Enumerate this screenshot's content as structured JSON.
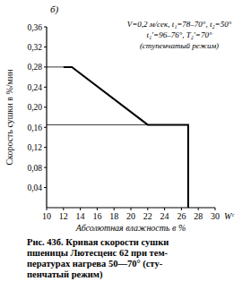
{
  "chart_data": {
    "type": "line",
    "panel_label": "б)",
    "y_label": "Скорость сушки в %/мин",
    "x_label": "Абсолютная влажность в %",
    "x_unit": "Wᶜ",
    "annotation": [
      "V=0,2 м/сек, t₁=78–70°, t₂=50°",
      "t₁′=96–76°, T₂′=70°",
      "(ступенчатый режим)"
    ],
    "caption": [
      "Рис. 43б. Кривая скорости сушки",
      "пшеницы Лютесценс 62 при тем-",
      "пературах нагрева 50—70° (сту-",
      "пенчатый режим)"
    ],
    "series": [
      {
        "x": [
          26.8,
          26.8,
          22,
          13,
          12
        ],
        "values": [
          0,
          0.165,
          0.165,
          0.28,
          0.28
        ],
        "color": "#000000",
        "line_style": "solid"
      },
      {
        "x": [
          10,
          22
        ],
        "values": [
          0.165,
          0.165
        ],
        "color": "#000000",
        "line_style": "thin"
      },
      {
        "x": [
          10,
          12
        ],
        "values": [
          0.28,
          0.28
        ],
        "color": "#000000",
        "line_style": "thin"
      }
    ],
    "xlim": [
      10,
      30
    ],
    "ylim": [
      0,
      0.36
    ],
    "xticks": [
      10,
      12,
      14,
      16,
      18,
      20,
      22,
      24,
      26,
      28,
      30
    ],
    "yticks": [
      {
        "value": 0.04,
        "label": "0,04"
      },
      {
        "value": 0.08,
        "label": "0,08"
      },
      {
        "value": 0.12,
        "label": "0,12"
      },
      {
        "value": 0.16,
        "label": "0,16"
      },
      {
        "value": 0.2,
        "label": "0,20"
      },
      {
        "value": 0.24,
        "label": "0,24"
      },
      {
        "value": 0.28,
        "label": "0,28"
      },
      {
        "value": 0.32,
        "label": "0,32"
      },
      {
        "value": 0.36,
        "label": "0,36"
      }
    ],
    "grid": false
  }
}
